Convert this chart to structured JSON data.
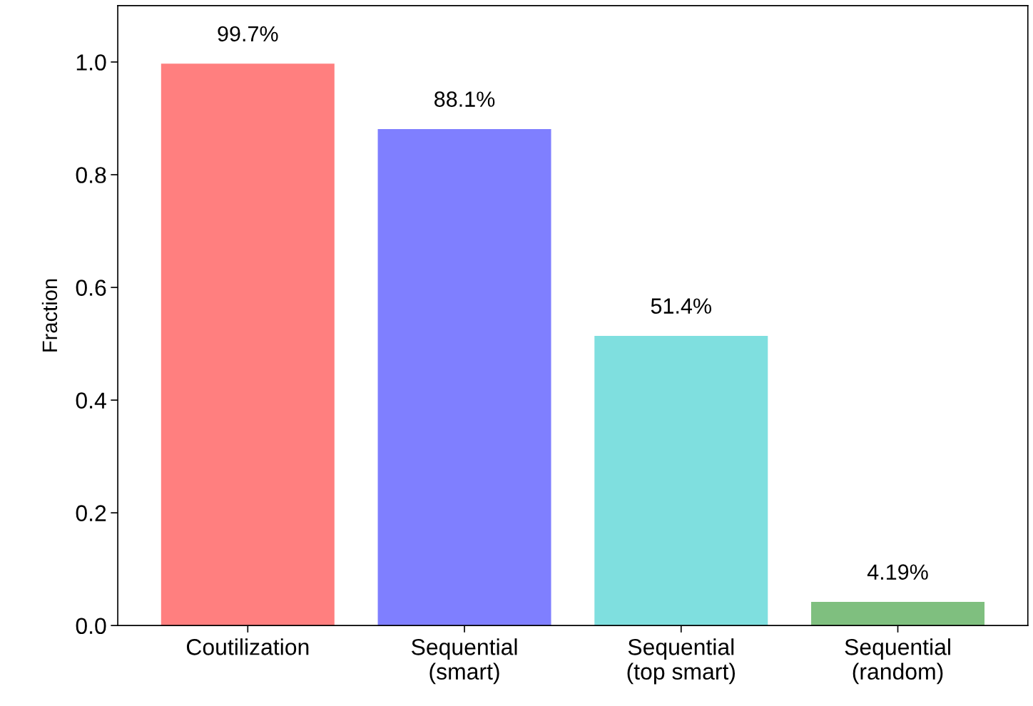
{
  "chart_data": {
    "type": "bar",
    "ylabel": "Fraction",
    "categories": [
      "Coutilization",
      "Sequential\n(smart)",
      "Sequential\n(top smart)",
      "Sequential\n(random)"
    ],
    "values": [
      0.997,
      0.881,
      0.514,
      0.0419
    ],
    "colors": [
      "#ff7f7f",
      "#7f7fff",
      "#7fdfdf",
      "#7fbf7f"
    ],
    "value_labels": [
      "99.7%",
      "88.1%",
      "51.4%",
      "4.19%"
    ],
    "ylim": [
      0,
      1.1
    ],
    "yticks": [
      {
        "value": 0,
        "label": "0.0"
      },
      {
        "value": 0.2,
        "label": "0.2"
      },
      {
        "value": 0.4,
        "label": "0.4"
      },
      {
        "value": 0.6,
        "label": "0.6"
      },
      {
        "value": 0.8,
        "label": "0.8"
      },
      {
        "value": 1,
        "label": "1.0"
      }
    ],
    "grid": false,
    "legend": false
  }
}
